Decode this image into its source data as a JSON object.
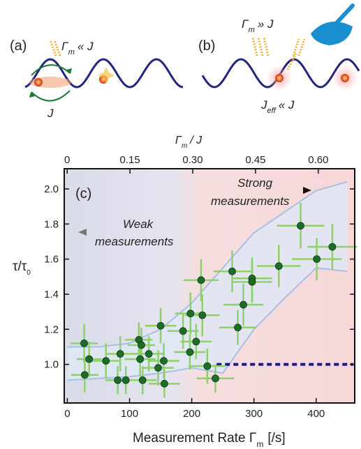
{
  "schematic": {
    "panel_a": {
      "label": "(a)",
      "rate": {
        "symbol": "Γ",
        "subscript": "m",
        "rest": "« J"
      },
      "coupling": "J"
    },
    "panel_b": {
      "label": "(b)",
      "rate": {
        "symbol": "Γ",
        "subscript": "m",
        "rest": "» J"
      },
      "coupling": {
        "symbol": "J",
        "subscript": "eff",
        "rest": "« J"
      }
    }
  },
  "chart_data": {
    "type": "scatter",
    "panel_label": "(c)",
    "annotations": {
      "strong": [
        "Strong",
        "measurements"
      ],
      "weak": [
        "Weak",
        "measurements"
      ]
    },
    "x_label": {
      "text": "Measurement Rate Γ",
      "subscript": "m",
      "suffix": "[/s]"
    },
    "x2_label": {
      "symbol": "Γ",
      "subscript": "m",
      "rest": "/ J"
    },
    "y_label": {
      "text": "τ/τ",
      "subscript": "0"
    },
    "xlim": [
      -5,
      462
    ],
    "xticks": [
      0,
      100,
      200,
      300,
      400
    ],
    "x2lim": [
      -0.007,
      0.687
    ],
    "x2ticks": [
      0,
      0.15,
      {
        "value": 0.3,
        "label": "0.30"
      },
      0.45,
      {
        "value": 0.6,
        "label": "0.60"
      }
    ],
    "ylim": [
      0.78,
      2.115
    ],
    "yticks": [
      {
        "value": 1,
        "label": "1.0"
      },
      1.2,
      1.4,
      1.6,
      1.8,
      {
        "value": 2,
        "label": "2.0"
      }
    ],
    "color": "#1f6b2c",
    "error_color": "#8fd06a",
    "x": [
      27,
      35,
      28,
      62,
      85,
      81,
      94,
      117,
      115,
      119,
      131,
      121,
      150,
      146,
      155,
      156,
      186,
      198,
      197,
      207,
      217,
      215,
      225,
      238,
      265,
      274,
      283,
      297,
      297,
      340,
      375,
      401,
      426
    ],
    "values": [
      1.12,
      1.03,
      0.94,
      1.02,
      1.06,
      0.91,
      0.91,
      1.03,
      1.14,
      1.11,
      1.06,
      0.91,
      1.22,
      0.98,
      1.02,
      0.89,
      1.19,
      1.29,
      1.07,
      1.13,
      1.28,
      1.48,
      0.99,
      0.92,
      1.53,
      1.21,
      1.34,
      1.49,
      1.47,
      1.56,
      1.79,
      1.6,
      1.67
    ],
    "xerr": [
      22,
      20,
      22,
      22,
      22,
      20,
      22,
      25,
      22,
      22,
      25,
      22,
      25,
      25,
      25,
      25,
      25,
      25,
      25,
      25,
      28,
      28,
      30,
      30,
      30,
      30,
      32,
      32,
      32,
      35,
      38,
      40,
      40
    ],
    "yerr": [
      0.11,
      0.1,
      0.1,
      0.1,
      0.1,
      0.08,
      0.08,
      0.1,
      0.1,
      0.1,
      0.1,
      0.08,
      0.1,
      0.1,
      0.1,
      0.08,
      0.1,
      0.12,
      0.1,
      0.1,
      0.12,
      0.12,
      0.1,
      0.08,
      0.12,
      0.1,
      0.12,
      0.12,
      0.12,
      0.12,
      0.13,
      0.12,
      0.13
    ],
    "band": {
      "color": "#dfe8f6",
      "x": [
        0,
        50,
        100,
        150,
        200,
        250,
        300,
        350,
        400,
        450
      ],
      "upper": [
        1.1,
        1.1,
        1.12,
        1.2,
        1.35,
        1.55,
        1.75,
        1.87,
        1.99,
        2.04
      ],
      "lower": [
        0.91,
        0.92,
        0.93,
        0.95,
        0.98,
        0.95,
        1.2,
        1.38,
        1.55,
        1.53
      ]
    },
    "reference_line": {
      "x": [
        240,
        460
      ],
      "values": [
        1,
        1
      ],
      "color": "#1a1a8c"
    }
  }
}
